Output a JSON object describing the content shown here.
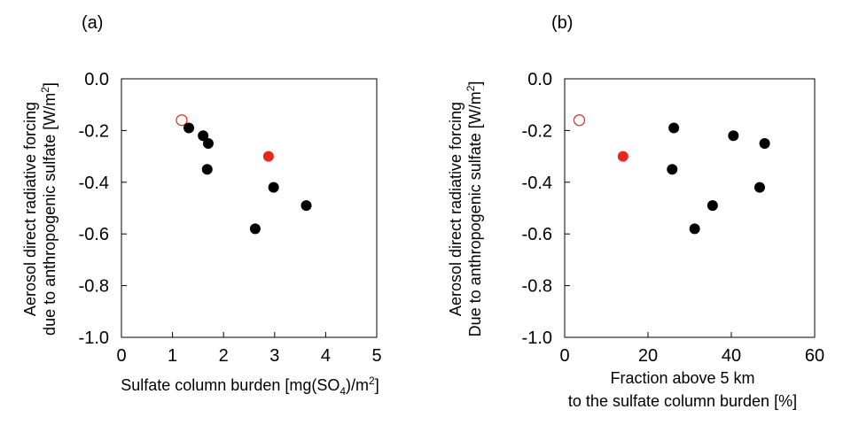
{
  "chart_data": [
    {
      "type": "scatter",
      "panel_label": "(a)",
      "xlabel": "Sulfate column burden [mg(SO4)/m2]",
      "ylabel_line1": "Aerosol direct radiative forcing",
      "ylabel_line2": "due to anthropogenic sulfate [W/m2]",
      "xlim": [
        0,
        5
      ],
      "ylim": [
        -1.0,
        0.0
      ],
      "xticks": [
        "0",
        "1",
        "2",
        "3",
        "4",
        "5"
      ],
      "yticks": [
        "0.0",
        "-0.2",
        "-0.4",
        "-0.6",
        "-0.8",
        "-1.0"
      ],
      "grid": false,
      "points": [
        {
          "x": 1.18,
          "y": -0.16,
          "marker": "open",
          "color": "#e8261c"
        },
        {
          "x": 2.88,
          "y": -0.3,
          "marker": "filled",
          "color": "#e8261c"
        },
        {
          "x": 1.32,
          "y": -0.19,
          "marker": "filled",
          "color": "#000000"
        },
        {
          "x": 1.6,
          "y": -0.22,
          "marker": "filled",
          "color": "#000000"
        },
        {
          "x": 1.7,
          "y": -0.25,
          "marker": "filled",
          "color": "#000000"
        },
        {
          "x": 1.68,
          "y": -0.35,
          "marker": "filled",
          "color": "#000000"
        },
        {
          "x": 2.98,
          "y": -0.42,
          "marker": "filled",
          "color": "#000000"
        },
        {
          "x": 3.62,
          "y": -0.49,
          "marker": "filled",
          "color": "#000000"
        },
        {
          "x": 2.62,
          "y": -0.58,
          "marker": "filled",
          "color": "#000000"
        }
      ]
    },
    {
      "type": "scatter",
      "panel_label": "(b)",
      "xlabel_line1": "Fraction above 5 km",
      "xlabel_line2": "to the sulfate column burden [%]",
      "ylabel_line1": "Aerosol direct radiative forcing",
      "ylabel_line2": "Due to anthropogenic sulfate [W/m2]",
      "xlim": [
        0,
        60
      ],
      "ylim": [
        -1.0,
        0.0
      ],
      "xticks": [
        "0",
        "20",
        "40",
        "60"
      ],
      "yticks": [
        "0.0",
        "-0.2",
        "-0.4",
        "-0.6",
        "-0.8",
        "-1.0"
      ],
      "grid": false,
      "points": [
        {
          "x": 3.5,
          "y": -0.16,
          "marker": "open",
          "color": "#e8261c"
        },
        {
          "x": 14.0,
          "y": -0.3,
          "marker": "filled",
          "color": "#e8261c"
        },
        {
          "x": 26.2,
          "y": -0.19,
          "marker": "filled",
          "color": "#000000"
        },
        {
          "x": 40.5,
          "y": -0.22,
          "marker": "filled",
          "color": "#000000"
        },
        {
          "x": 48.0,
          "y": -0.25,
          "marker": "filled",
          "color": "#000000"
        },
        {
          "x": 25.8,
          "y": -0.35,
          "marker": "filled",
          "color": "#000000"
        },
        {
          "x": 46.8,
          "y": -0.42,
          "marker": "filled",
          "color": "#000000"
        },
        {
          "x": 35.5,
          "y": -0.49,
          "marker": "filled",
          "color": "#000000"
        },
        {
          "x": 31.2,
          "y": -0.58,
          "marker": "filled",
          "color": "#000000"
        }
      ]
    }
  ]
}
